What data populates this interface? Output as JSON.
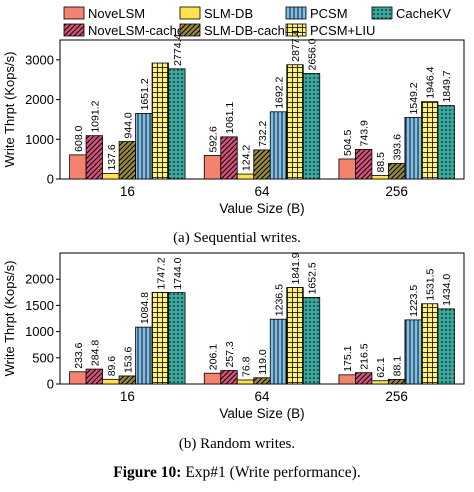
{
  "legend": [
    {
      "name": "NoveLSM",
      "color": "#f4826e",
      "pattern": "solid"
    },
    {
      "name": "SLM-DB",
      "color": "#ffe14d",
      "pattern": "solid"
    },
    {
      "name": "PCSM",
      "color": "#7fbfe8",
      "pattern": "vlines"
    },
    {
      "name": "CacheKV",
      "color": "#3aa89e",
      "pattern": "dots"
    },
    {
      "name": "NoveLSM-cache",
      "color": "#d9507a",
      "pattern": "hatch"
    },
    {
      "name": "SLM-DB-cache",
      "color": "#9a8a3c",
      "pattern": "hatch"
    },
    {
      "name": "PCSM+LIU",
      "color": "#fff07a",
      "pattern": "grid"
    }
  ],
  "chart_data": [
    {
      "type": "bar",
      "xlabel": "Value Size (B)",
      "ylabel": "Write Thrpt (Kops/s)",
      "ylim": [
        0,
        3500
      ],
      "yticks": [
        0,
        1000,
        2000,
        3000
      ],
      "categories": [
        "16",
        "64",
        "256"
      ],
      "grid": false,
      "series": [
        {
          "name": "NoveLSM",
          "values": [
            608.0,
            592.6,
            504.5
          ],
          "labels": [
            "608.0",
            "592.6",
            "504.5"
          ]
        },
        {
          "name": "NoveLSM-cache",
          "values": [
            1091.2,
            1061.1,
            743.9
          ],
          "labels": [
            "1091.2",
            "1061.1",
            "743.9"
          ]
        },
        {
          "name": "SLM-DB",
          "values": [
            137.6,
            124.2,
            88.5
          ],
          "labels": [
            "137.6",
            "124.2",
            "88.5"
          ]
        },
        {
          "name": "SLM-DB-cache",
          "values": [
            944.0,
            732.2,
            393.6
          ],
          "labels": [
            "944.0",
            "732.2",
            "393.6"
          ]
        },
        {
          "name": "PCSM",
          "values": [
            1651.2,
            1692.2,
            1549.2
          ],
          "labels": [
            "1651.2",
            "1692.2",
            "1549.2"
          ]
        },
        {
          "name": "PCSM+LIU",
          "values": [
            2920.0,
            2877.4,
            1946.4
          ],
          "labels": [
            "",
            "2877.4",
            "1946.4"
          ]
        },
        {
          "name": "CacheKV",
          "values": [
            2774.4,
            2656.0,
            1849.7
          ],
          "labels": [
            "2774.4",
            "2656.0",
            "1849.7"
          ]
        }
      ]
    },
    {
      "type": "bar",
      "xlabel": "Value Size (B)",
      "ylabel": "Write Thrpt (Kops/s)",
      "ylim": [
        0,
        2500
      ],
      "yticks": [
        0,
        500,
        1000,
        1500,
        2000
      ],
      "categories": [
        "16",
        "64",
        "256"
      ],
      "grid": false,
      "series": [
        {
          "name": "NoveLSM",
          "values": [
            233.6,
            206.1,
            175.1
          ],
          "labels": [
            "233.6",
            "206.1",
            "175.1"
          ]
        },
        {
          "name": "NoveLSM-cache",
          "values": [
            284.8,
            257.3,
            216.5
          ],
          "labels": [
            "284.8",
            "257.3",
            "216.5"
          ]
        },
        {
          "name": "SLM-DB",
          "values": [
            89.6,
            76.8,
            62.1
          ],
          "labels": [
            "89.6",
            "76.8",
            "62.1"
          ]
        },
        {
          "name": "SLM-DB-cache",
          "values": [
            153.6,
            119.0,
            88.1
          ],
          "labels": [
            "153.6",
            "119.0",
            "88.1"
          ]
        },
        {
          "name": "PCSM",
          "values": [
            1084.8,
            1236.5,
            1223.5
          ],
          "labels": [
            "1084.8",
            "1236.5",
            "1223.5"
          ]
        },
        {
          "name": "PCSM+LIU",
          "values": [
            1747.2,
            1841.9,
            1531.5
          ],
          "labels": [
            "1747.2",
            "1841.9",
            "1531.5"
          ]
        },
        {
          "name": "CacheKV",
          "values": [
            1744.0,
            1652.5,
            1434.0
          ],
          "labels": [
            "1744.0",
            "1652.5",
            "1434.0"
          ]
        }
      ]
    }
  ],
  "captions": {
    "a": "(a) Sequential writes.",
    "b": "(b) Random writes.",
    "figure_label": "Figure 10:",
    "figure_text": " Exp#1 (Write performance)."
  }
}
